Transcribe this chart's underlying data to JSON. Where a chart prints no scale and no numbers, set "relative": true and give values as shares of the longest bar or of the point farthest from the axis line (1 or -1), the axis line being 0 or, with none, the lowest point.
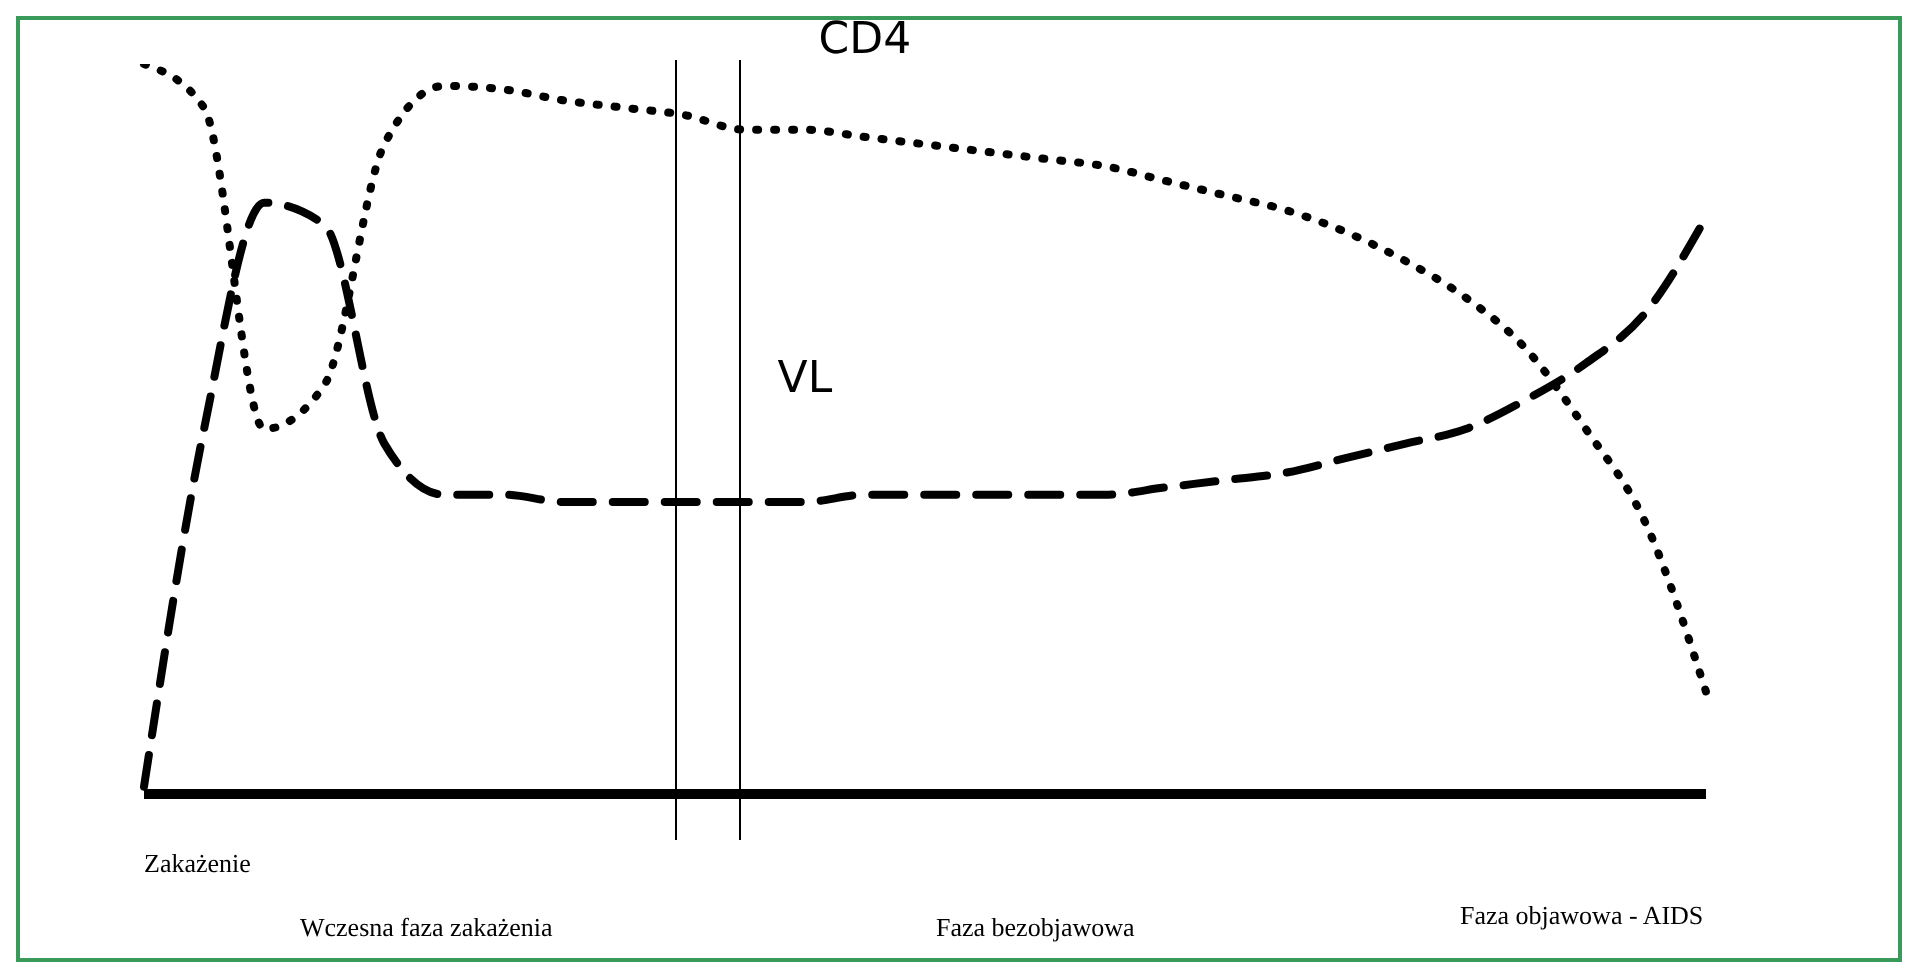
{
  "chart_data": {
    "type": "line",
    "relative": true,
    "categories": [
      null,
      null,
      null,
      null,
      null,
      null,
      null,
      null,
      null,
      null,
      null,
      null,
      null,
      null,
      null,
      null,
      null,
      null,
      null,
      null,
      null,
      null,
      null,
      null,
      null,
      null,
      null
    ],
    "series": [
      {
        "name": "CD4",
        "color": "#000000",
        "line_style": "dotted",
        "values": [
          1.0,
          0.94,
          0.5,
          0.56,
          0.89,
          0.97,
          0.965,
          0.95,
          0.94,
          0.93,
          0.91,
          0.91,
          0.9,
          0.89,
          0.88,
          0.87,
          0.86,
          0.84,
          0.82,
          0.8,
          0.77,
          0.73,
          0.68,
          0.61,
          0.5,
          0.37,
          0.14
        ]
      },
      {
        "name": "VL",
        "color": "#000000",
        "line_style": "dashed",
        "values": [
          0.01,
          0.5,
          0.81,
          0.78,
          0.48,
          0.41,
          0.41,
          0.4,
          0.4,
          0.4,
          0.4,
          0.4,
          0.41,
          0.41,
          0.41,
          0.41,
          0.41,
          0.42,
          0.43,
          0.44,
          0.46,
          0.48,
          0.5,
          0.54,
          0.59,
          0.66,
          0.79
        ]
      }
    ],
    "annotations": [
      "Zakażenie",
      "Wczesna faza zakażenia",
      "Faza bezobjawowa",
      "Faza objawowa - AIDS"
    ],
    "grid": false,
    "legend": false,
    "marker": "none"
  }
}
